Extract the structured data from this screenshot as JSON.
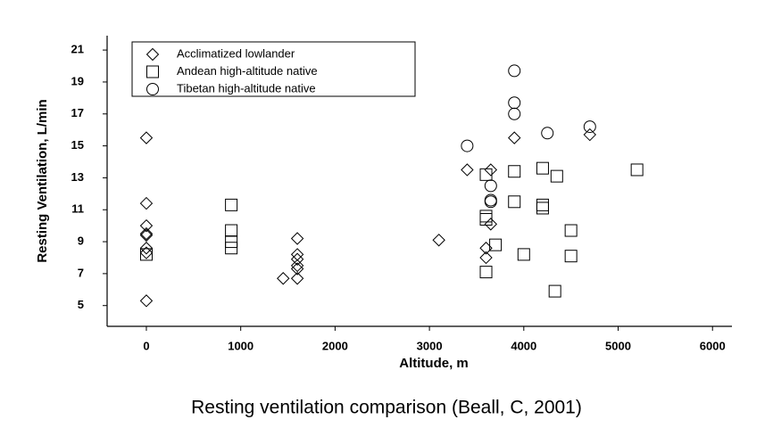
{
  "chart_data": {
    "type": "scatter",
    "caption": "Resting ventilation comparison (Beall, C, 2001)",
    "x_label": "Altitude, m",
    "y_label": "Resting Ventilation, L/min",
    "xlim": [
      -416,
      6206
    ],
    "ylim": [
      3.7,
      21.9
    ],
    "xticks": [
      0,
      1000,
      2000,
      3000,
      4000,
      5000,
      6000
    ],
    "yticks": [
      5,
      7,
      9,
      11,
      13,
      15,
      17,
      19,
      21
    ],
    "legend": "upper left",
    "series": [
      {
        "name": "Acclimatized lowlander",
        "marker": "diamond",
        "color": "#000000",
        "x": [
          0,
          0,
          0,
          0,
          0,
          0,
          0,
          0,
          1600,
          1600,
          1600,
          1600,
          1600,
          1600,
          1450,
          3100,
          3400,
          3600,
          3600,
          3650,
          3650,
          3900,
          4700
        ],
        "values": [
          15.5,
          11.4,
          10.0,
          9.5,
          9.4,
          8.6,
          8.3,
          5.3,
          9.2,
          8.2,
          7.9,
          7.5,
          7.3,
          6.7,
          6.7,
          9.1,
          13.5,
          8.6,
          8.0,
          13.5,
          10.1,
          15.5,
          15.7
        ]
      },
      {
        "name": "Andean high-altitude native",
        "marker": "square",
        "color": "#000000",
        "x": [
          0,
          900,
          900,
          900,
          900,
          3600,
          3600,
          3600,
          3600,
          3700,
          3900,
          3900,
          4000,
          4200,
          4200,
          4200,
          4350,
          4330,
          4500,
          4500,
          5200
        ],
        "values": [
          8.2,
          11.3,
          9.7,
          9.0,
          8.6,
          13.2,
          10.6,
          10.4,
          7.1,
          8.8,
          13.4,
          11.5,
          8.2,
          13.6,
          11.3,
          11.1,
          13.1,
          5.9,
          9.7,
          8.1,
          13.5
        ]
      },
      {
        "name": "Tibetan high-altitude native",
        "marker": "circle",
        "color": "#000000",
        "x": [
          3400,
          3650,
          3650,
          3650,
          3900,
          3900,
          3900,
          4250,
          4700
        ],
        "values": [
          15.0,
          12.5,
          11.6,
          11.5,
          19.7,
          17.7,
          17.0,
          15.8,
          16.2
        ]
      }
    ]
  }
}
